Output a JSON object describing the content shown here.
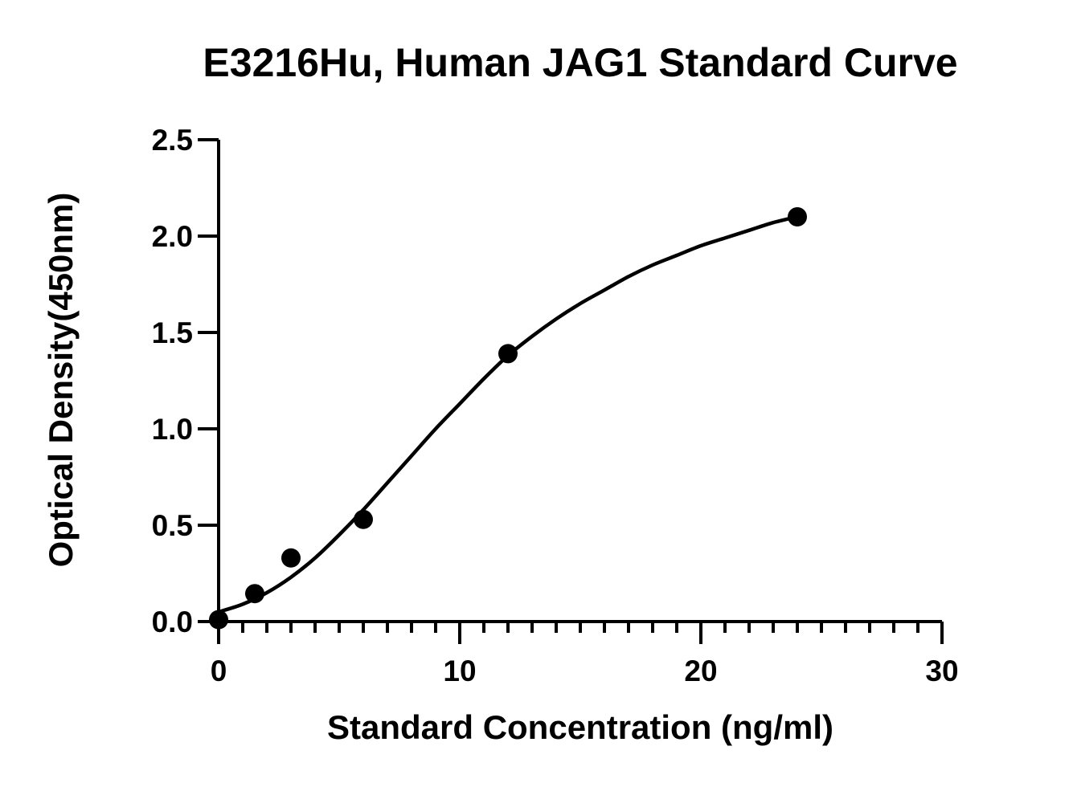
{
  "chart_data": {
    "type": "scatter",
    "title": "E3216Hu, Human JAG1 Standard Curve",
    "xlabel": "Standard Concentration (ng/ml)",
    "ylabel": "Optical Density(450nm)",
    "xlim": [
      0,
      30
    ],
    "ylim": [
      0,
      2.5
    ],
    "x_ticks": [
      "0",
      "10",
      "20",
      "30"
    ],
    "y_ticks": [
      "0.0",
      "0.5",
      "1.0",
      "1.5",
      "2.0",
      "2.5"
    ],
    "grid": false,
    "legend": "none",
    "series": [
      {
        "type": "scatter",
        "x": [
          0,
          1.5,
          3,
          6,
          12,
          24
        ],
        "y": [
          0.01,
          0.145,
          0.33,
          0.53,
          1.39,
          2.1
        ]
      },
      {
        "type": "line",
        "curve": "fitted standard curve",
        "x": [
          0,
          1,
          2,
          3,
          4,
          5,
          6,
          7,
          8,
          9,
          10,
          11,
          12,
          13,
          14,
          15,
          16,
          17,
          18,
          19,
          20,
          21,
          22,
          23,
          24
        ],
        "y": [
          0.05,
          0.09,
          0.15,
          0.23,
          0.33,
          0.45,
          0.58,
          0.72,
          0.86,
          1.0,
          1.13,
          1.26,
          1.38,
          1.48,
          1.57,
          1.65,
          1.72,
          1.79,
          1.85,
          1.9,
          1.95,
          1.99,
          2.03,
          2.07,
          2.1
        ]
      }
    ],
    "colors": {
      "marker": "#000000",
      "line": "#000000",
      "axis": "#000000",
      "background": "#ffffff"
    }
  }
}
